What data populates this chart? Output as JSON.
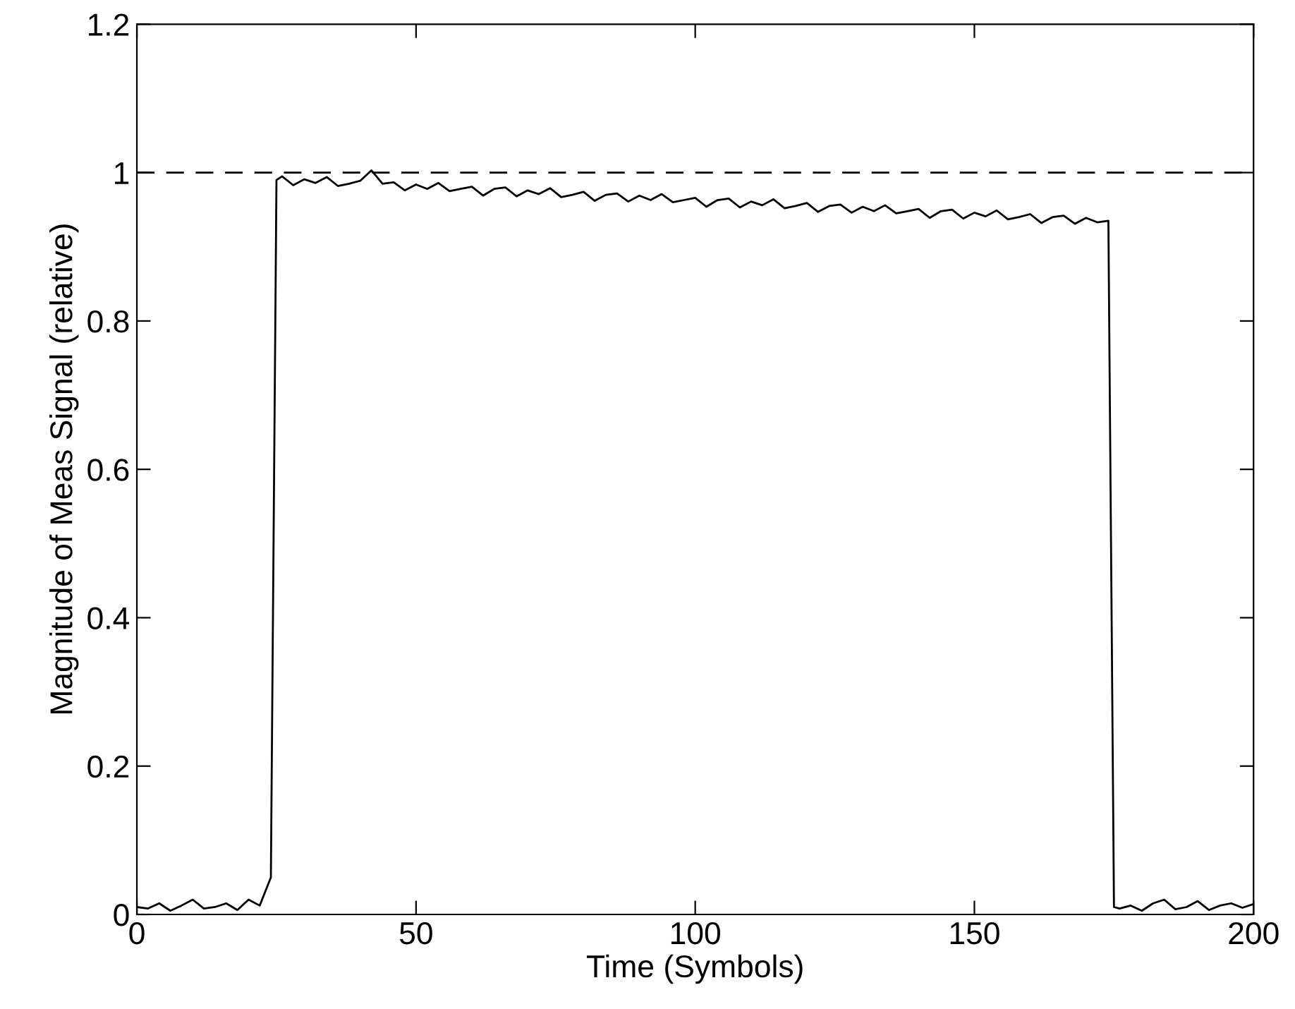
{
  "chart_data": {
    "type": "line",
    "xlabel": "Time (Symbols)",
    "ylabel": "Magnitude of Meas Signal (relative)",
    "xlim": [
      0,
      200
    ],
    "xticks": [
      0,
      50,
      100,
      150,
      200
    ],
    "ylim": [
      0,
      1.2
    ],
    "yticks": [
      0,
      0.2,
      0.4,
      0.6,
      0.8,
      1,
      1.2
    ],
    "grid": false,
    "legend": false,
    "line_style": "solid",
    "marker": "none",
    "ref_lines": [
      {
        "axis": "y",
        "value": 1,
        "color": "#000000",
        "line_style": "dashed"
      }
    ],
    "series": [
      {
        "color": "#000000",
        "x": [
          0,
          2,
          4,
          6,
          8,
          10,
          12,
          14,
          16,
          18,
          20,
          22,
          24,
          25,
          26,
          28,
          30,
          32,
          34,
          36,
          38,
          40,
          42,
          44,
          46,
          48,
          50,
          52,
          54,
          56,
          58,
          60,
          62,
          64,
          66,
          68,
          70,
          72,
          74,
          76,
          78,
          80,
          82,
          84,
          86,
          88,
          90,
          92,
          94,
          96,
          98,
          100,
          102,
          104,
          106,
          108,
          110,
          112,
          114,
          116,
          118,
          120,
          122,
          124,
          126,
          128,
          130,
          132,
          134,
          136,
          138,
          140,
          142,
          144,
          146,
          148,
          150,
          152,
          154,
          156,
          158,
          160,
          162,
          164,
          166,
          168,
          170,
          172,
          174,
          175,
          176,
          178,
          180,
          182,
          184,
          186,
          188,
          190,
          192,
          194,
          196,
          198,
          200
        ],
        "values": [
          0.01,
          0.008,
          0.015,
          0.005,
          0.012,
          0.02,
          0.008,
          0.01,
          0.015,
          0.006,
          0.02,
          0.012,
          0.05,
          0.99,
          0.995,
          0.983,
          0.991,
          0.986,
          0.994,
          0.982,
          0.985,
          0.989,
          1.003,
          0.985,
          0.987,
          0.976,
          0.984,
          0.978,
          0.986,
          0.975,
          0.978,
          0.981,
          0.969,
          0.978,
          0.98,
          0.968,
          0.976,
          0.971,
          0.979,
          0.967,
          0.97,
          0.974,
          0.962,
          0.97,
          0.972,
          0.961,
          0.969,
          0.963,
          0.971,
          0.96,
          0.963,
          0.966,
          0.954,
          0.963,
          0.965,
          0.953,
          0.961,
          0.956,
          0.964,
          0.952,
          0.955,
          0.959,
          0.947,
          0.955,
          0.957,
          0.946,
          0.954,
          0.948,
          0.956,
          0.945,
          0.948,
          0.951,
          0.939,
          0.948,
          0.95,
          0.938,
          0.946,
          0.941,
          0.949,
          0.937,
          0.94,
          0.944,
          0.932,
          0.94,
          0.942,
          0.931,
          0.939,
          0.933,
          0.935,
          0.01,
          0.008,
          0.012,
          0.005,
          0.015,
          0.02,
          0.007,
          0.01,
          0.018,
          0.006,
          0.012,
          0.015,
          0.009,
          0.014
        ]
      }
    ]
  }
}
